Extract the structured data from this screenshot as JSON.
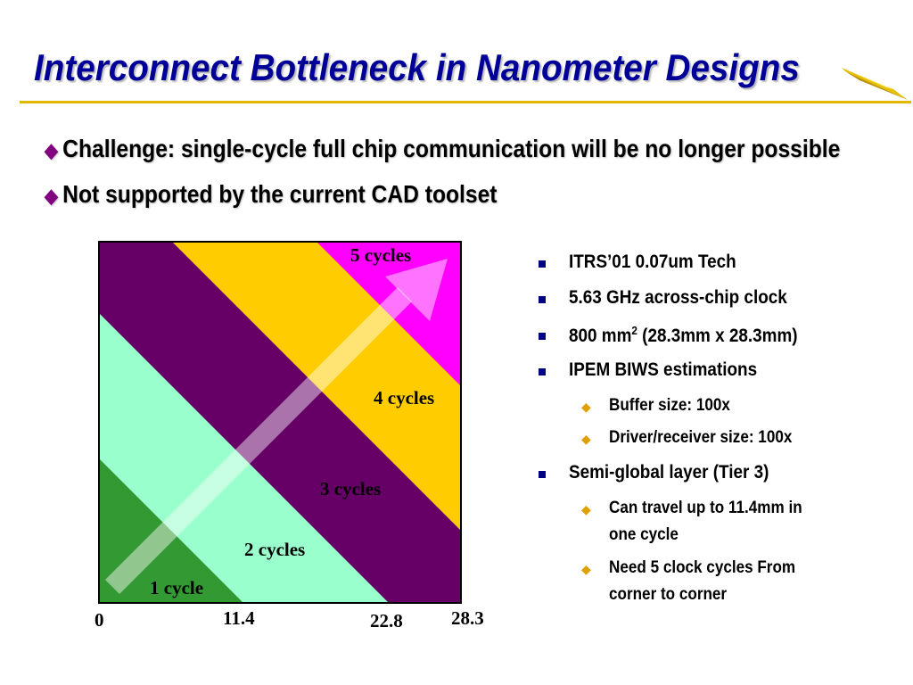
{
  "slide": {
    "title": "Interconnect Bottleneck in Nanometer Designs",
    "bullets": [
      "Challenge: single-cycle full chip communication will be no longer possible",
      "Not supported by the current CAD toolset"
    ],
    "right_list": {
      "items": [
        {
          "text": "ITRS’01 0.07um Tech"
        },
        {
          "text": "5.63 GHz across-chip clock"
        },
        {
          "text_pre": "800 mm",
          "superscript": "2",
          "text_post": " (28.3mm x 28.3mm)"
        },
        {
          "text": "IPEM BIWS estimations",
          "sub": [
            "Buffer size: 100x",
            "Driver/receiver size: 100x"
          ]
        },
        {
          "text": "Semi-global layer (Tier 3)",
          "sub": [
            {
              "line1": "Can travel up to 11.4mm in",
              "line2": "one cycle"
            },
            {
              "line1": "Need 5 clock cycles From",
              "line2": "corner to corner"
            }
          ]
        }
      ]
    }
  },
  "chart_data": {
    "type": "area",
    "regions": [
      {
        "label": "1 cycle",
        "color": "#339933"
      },
      {
        "label": "2 cycles",
        "color": "#99ffcc"
      },
      {
        "label": "3 cycles",
        "color": "#660066"
      },
      {
        "label": "4 cycles",
        "color": "#ffcc00"
      },
      {
        "label": "5 cycles",
        "color": "#ff00ff"
      }
    ],
    "x_ticks": [
      "0",
      "11.4",
      "22.8",
      "28.3"
    ],
    "axis_range": [
      0,
      28.3
    ],
    "arrow": "from bottom-left corner to top-right corner"
  },
  "colors": {
    "title": "#000099",
    "rule": "#e0b800",
    "bullet_diamond": "#800080",
    "square_bullet": "#000080",
    "sub_diamond": "#e0a000"
  },
  "icons": {
    "main_bullet": "diamond-icon",
    "list_bullet": "square-bullet-icon",
    "sub_bullet": "orange-diamond-icon",
    "logo": "gold-wedge-logo"
  }
}
